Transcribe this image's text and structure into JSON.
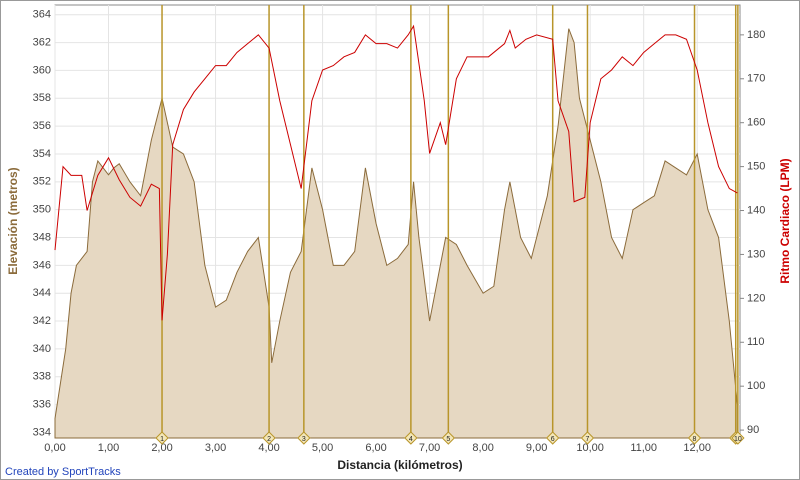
{
  "chart_data": {
    "type": "area-line",
    "x_label": "Distancia (kilómetros)",
    "y_label": "Elevación (metros)",
    "y2_label": "Ritmo Cardiaco (LPM)",
    "credit": "Created by SportTracks",
    "xlim": [
      0,
      12.8
    ],
    "xticks": [
      {
        "value": 0,
        "label": "0,00"
      },
      {
        "value": 1,
        "label": "1,00"
      },
      {
        "value": 2,
        "label": "2,00"
      },
      {
        "value": 3,
        "label": "3,00"
      },
      {
        "value": 4,
        "label": "4,00"
      },
      {
        "value": 5,
        "label": "5,00"
      },
      {
        "value": 6,
        "label": "6,00"
      },
      {
        "value": 7,
        "label": "7,00"
      },
      {
        "value": 8,
        "label": "8,00"
      },
      {
        "value": 9,
        "label": "9,00"
      },
      {
        "value": 10,
        "label": "10,00"
      },
      {
        "value": 11,
        "label": "11,00"
      },
      {
        "value": 12,
        "label": "12,00"
      }
    ],
    "ylim": [
      333.6,
      364.7
    ],
    "yticks": [
      334,
      336,
      338,
      340,
      342,
      344,
      346,
      348,
      350,
      352,
      354,
      356,
      358,
      360,
      362,
      364
    ],
    "y2lim": [
      88.2,
      186.8
    ],
    "y2ticks": [
      90,
      100,
      110,
      120,
      130,
      140,
      150,
      160,
      170,
      180
    ],
    "grid": true,
    "series": [
      {
        "kind": "area",
        "color": "#8b6b3b",
        "fill": "#e6d8c2",
        "x": [
          0,
          0.2,
          0.3,
          0.4,
          0.6,
          0.7,
          0.8,
          1.0,
          1.1,
          1.2,
          1.4,
          1.6,
          1.8,
          2.0,
          2.2,
          2.4,
          2.6,
          2.8,
          3.0,
          3.2,
          3.4,
          3.6,
          3.8,
          4.0,
          4.05,
          4.2,
          4.4,
          4.6,
          4.8,
          5.0,
          5.2,
          5.4,
          5.6,
          5.8,
          6.0,
          6.2,
          6.4,
          6.6,
          6.7,
          6.8,
          7.0,
          7.2,
          7.3,
          7.5,
          7.7,
          8.0,
          8.2,
          8.4,
          8.5,
          8.7,
          8.9,
          9.0,
          9.2,
          9.4,
          9.6,
          9.7,
          9.8,
          10.0,
          10.2,
          10.4,
          10.6,
          10.8,
          11.0,
          11.2,
          11.4,
          11.6,
          11.8,
          12.0,
          12.2,
          12.4,
          12.6,
          12.75
        ],
        "values": [
          335,
          340,
          344,
          346,
          347,
          352,
          353.5,
          352.5,
          353,
          353.3,
          352,
          351,
          355,
          358,
          354.5,
          354,
          352,
          346,
          343,
          343.5,
          345.5,
          347,
          348,
          343,
          339,
          342,
          345.5,
          347,
          353,
          350,
          346,
          346,
          347,
          353,
          349,
          346,
          346.5,
          347.5,
          352,
          348,
          342,
          346,
          348,
          347.5,
          346,
          344,
          344.5,
          350,
          352,
          348,
          346.5,
          348,
          351,
          356,
          363,
          362,
          358,
          355,
          352,
          348,
          346.5,
          350,
          350.5,
          351,
          353.5,
          353,
          352.5,
          354,
          350,
          348,
          342,
          336
        ]
      },
      {
        "kind": "line",
        "axis": "y2",
        "color": "#cc0000",
        "x": [
          0,
          0.15,
          0.3,
          0.5,
          0.6,
          0.8,
          1.0,
          1.2,
          1.4,
          1.6,
          1.8,
          1.95,
          2.0,
          2.1,
          2.2,
          2.4,
          2.6,
          2.8,
          3.0,
          3.2,
          3.4,
          3.6,
          3.8,
          4.0,
          4.2,
          4.4,
          4.6,
          4.8,
          5.0,
          5.2,
          5.4,
          5.6,
          5.8,
          6.0,
          6.2,
          6.4,
          6.6,
          6.7,
          6.9,
          7.0,
          7.2,
          7.3,
          7.5,
          7.7,
          7.9,
          8.1,
          8.4,
          8.5,
          8.6,
          8.8,
          9.0,
          9.3,
          9.4,
          9.6,
          9.7,
          9.9,
          10.0,
          10.2,
          10.4,
          10.6,
          10.8,
          11.0,
          11.2,
          11.4,
          11.6,
          11.8,
          12.0,
          12.2,
          12.4,
          12.6,
          12.75
        ],
        "values": [
          131,
          150,
          148,
          148,
          140,
          148,
          152,
          147,
          143,
          141,
          146,
          145,
          115,
          130,
          155,
          163,
          167,
          170,
          173,
          173,
          176,
          178,
          180,
          177,
          165,
          155,
          145,
          165,
          172,
          173,
          175,
          176,
          180,
          178,
          178,
          177,
          180,
          182,
          165,
          153,
          160,
          155,
          170,
          175,
          175,
          175,
          178,
          181,
          177,
          179,
          180,
          179,
          165,
          158,
          142,
          143,
          160,
          170,
          172,
          175,
          173,
          176,
          178,
          180,
          180,
          179,
          172,
          160,
          150,
          145,
          144
        ]
      }
    ],
    "marker_color": "#b8952a",
    "markers": [
      {
        "x": 2.0,
        "label": "1"
      },
      {
        "x": 4.0,
        "label": "2"
      },
      {
        "x": 4.65,
        "label": "3"
      },
      {
        "x": 6.65,
        "label": "4"
      },
      {
        "x": 7.35,
        "label": "5"
      },
      {
        "x": 9.3,
        "label": "6"
      },
      {
        "x": 9.95,
        "label": "7"
      },
      {
        "x": 11.95,
        "label": "8"
      },
      {
        "x": 12.72,
        "label": "9"
      },
      {
        "x": 12.76,
        "label": "10"
      }
    ]
  }
}
